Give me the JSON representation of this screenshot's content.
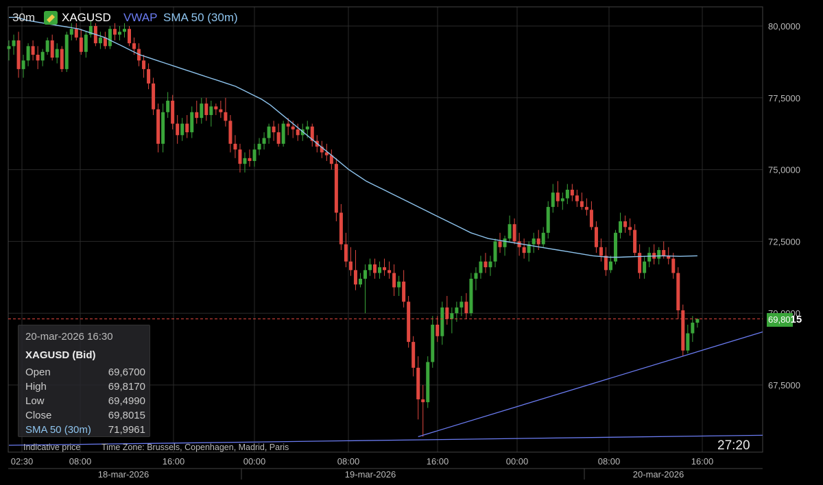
{
  "header": {
    "interval": "30m",
    "symbol": "XAGUSD",
    "indicators": [
      "VWAP",
      "SMA 50 (30m)"
    ]
  },
  "infobox": {
    "datetime": "20-mar-2026 16:30",
    "instrument": "XAGUSD (Bid)",
    "rows": [
      {
        "label": "Open",
        "value": "69,6700"
      },
      {
        "label": "High",
        "value": "69,8170"
      },
      {
        "label": "Low",
        "value": "69,4990"
      },
      {
        "label": "Close",
        "value": "69,8015"
      }
    ],
    "sma": {
      "label": "SMA 50 (30m)",
      "value": "71,9961"
    }
  },
  "footer": {
    "note": "Indicative price",
    "timezone": "Time Zone: Brussels, Copenhagen, Madrid, Paris"
  },
  "countdown": "27:20",
  "price_tag": {
    "main": "69,80",
    "tail": "15"
  },
  "colors": {
    "up": "#3aa53a",
    "down": "#e0473f",
    "sma": "#8ec4ee",
    "vwap": "#6b7cf2",
    "grid": "#2a2a2a",
    "current": "#e0473f"
  },
  "chart_data": {
    "type": "candlestick",
    "y_ticks": [
      "80,0000",
      "77,5000",
      "75,0000",
      "72,5000",
      "70,0000",
      "67,5000"
    ],
    "ylim": [
      65.2,
      80.8
    ],
    "x_ticks": [
      "02:30",
      "08:00",
      "16:00",
      "00:00",
      "08:00",
      "16:00",
      "00:00",
      "08:00",
      "16:00"
    ],
    "date_labels": [
      "18-mar-2026",
      "19-mar-2026",
      "20-mar-2026"
    ],
    "current_price": 69.8015,
    "ohlc": [
      [
        79.2,
        79.5,
        78.8,
        79.3
      ],
      [
        79.3,
        79.7,
        79.0,
        79.5
      ],
      [
        79.5,
        79.8,
        78.2,
        78.5
      ],
      [
        78.5,
        79.0,
        78.2,
        78.8
      ],
      [
        78.8,
        79.4,
        78.6,
        79.3
      ],
      [
        79.3,
        79.5,
        78.8,
        79.0
      ],
      [
        79.0,
        79.3,
        78.5,
        78.8
      ],
      [
        78.8,
        79.2,
        78.6,
        79.1
      ],
      [
        79.1,
        79.6,
        79.0,
        79.5
      ],
      [
        79.5,
        79.7,
        78.8,
        78.9
      ],
      [
        78.9,
        79.4,
        78.7,
        79.2
      ],
      [
        79.2,
        79.3,
        78.4,
        78.5
      ],
      [
        78.5,
        79.8,
        78.4,
        79.7
      ],
      [
        79.7,
        80.1,
        79.5,
        79.9
      ],
      [
        79.9,
        80.1,
        79.5,
        79.6
      ],
      [
        79.6,
        79.9,
        79.0,
        79.1
      ],
      [
        79.1,
        79.8,
        78.9,
        79.7
      ],
      [
        79.7,
        80.2,
        79.6,
        80.0
      ],
      [
        80.0,
        80.1,
        79.3,
        79.4
      ],
      [
        79.4,
        79.8,
        79.2,
        79.6
      ],
      [
        79.6,
        79.8,
        79.2,
        79.3
      ],
      [
        79.3,
        80.0,
        79.2,
        79.9
      ],
      [
        79.9,
        80.1,
        79.5,
        79.7
      ],
      [
        79.7,
        80.0,
        79.5,
        79.8
      ],
      [
        79.8,
        80.1,
        79.6,
        79.9
      ],
      [
        79.9,
        80.0,
        79.3,
        79.4
      ],
      [
        79.4,
        79.6,
        79.0,
        79.2
      ],
      [
        79.2,
        79.4,
        78.6,
        78.8
      ],
      [
        78.8,
        79.0,
        78.2,
        78.5
      ],
      [
        78.5,
        78.7,
        77.8,
        78.0
      ],
      [
        78.0,
        78.2,
        76.9,
        77.1
      ],
      [
        77.1,
        77.3,
        75.6,
        75.9
      ],
      [
        75.9,
        77.3,
        75.6,
        77.0
      ],
      [
        77.0,
        77.7,
        76.8,
        77.4
      ],
      [
        77.4,
        77.6,
        76.4,
        76.6
      ],
      [
        76.6,
        76.9,
        75.9,
        76.2
      ],
      [
        76.2,
        76.8,
        76.0,
        76.6
      ],
      [
        76.6,
        76.9,
        76.1,
        76.3
      ],
      [
        76.3,
        77.2,
        76.1,
        77.0
      ],
      [
        77.0,
        77.4,
        76.6,
        76.8
      ],
      [
        76.8,
        77.5,
        76.6,
        77.3
      ],
      [
        77.3,
        77.5,
        76.7,
        76.9
      ],
      [
        76.9,
        77.4,
        76.5,
        77.2
      ],
      [
        77.2,
        77.3,
        76.9,
        77.1
      ],
      [
        77.1,
        77.4,
        76.8,
        77.0
      ],
      [
        77.0,
        77.5,
        76.5,
        76.7
      ],
      [
        76.7,
        76.9,
        75.6,
        75.9
      ],
      [
        75.9,
        76.2,
        75.4,
        75.7
      ],
      [
        75.7,
        75.9,
        74.9,
        75.2
      ],
      [
        75.2,
        75.6,
        74.9,
        75.4
      ],
      [
        75.4,
        75.7,
        75.1,
        75.3
      ],
      [
        75.3,
        75.9,
        75.1,
        75.7
      ],
      [
        75.7,
        76.1,
        75.5,
        75.9
      ],
      [
        75.9,
        76.3,
        75.7,
        76.1
      ],
      [
        76.1,
        76.6,
        75.9,
        76.5
      ],
      [
        76.5,
        76.7,
        76.0,
        76.3
      ],
      [
        76.3,
        76.6,
        75.8,
        75.9
      ],
      [
        75.9,
        76.7,
        75.8,
        76.6
      ],
      [
        76.6,
        76.8,
        76.2,
        76.5
      ],
      [
        76.5,
        76.7,
        76.1,
        76.4
      ],
      [
        76.4,
        76.6,
        76.0,
        76.2
      ],
      [
        76.2,
        76.6,
        76.0,
        76.4
      ],
      [
        76.4,
        76.7,
        76.1,
        76.5
      ],
      [
        76.5,
        76.6,
        75.8,
        76.0
      ],
      [
        76.0,
        76.2,
        75.6,
        75.8
      ],
      [
        75.8,
        76.0,
        75.4,
        75.6
      ],
      [
        75.6,
        75.9,
        75.3,
        75.5
      ],
      [
        75.5,
        75.7,
        75.0,
        75.2
      ],
      [
        75.2,
        75.4,
        73.2,
        73.5
      ],
      [
        73.5,
        73.8,
        72.2,
        72.4
      ],
      [
        72.4,
        72.8,
        71.6,
        71.8
      ],
      [
        71.8,
        72.3,
        71.3,
        71.5
      ],
      [
        71.5,
        72.2,
        70.8,
        71.0
      ],
      [
        71.0,
        71.4,
        70.9,
        71.2
      ],
      [
        71.2,
        71.7,
        70.0,
        71.5
      ],
      [
        71.5,
        71.9,
        71.3,
        71.7
      ],
      [
        71.7,
        71.9,
        71.2,
        71.4
      ],
      [
        71.4,
        71.8,
        71.2,
        71.6
      ],
      [
        71.6,
        71.9,
        71.3,
        71.5
      ],
      [
        71.5,
        71.8,
        71.2,
        71.4
      ],
      [
        71.4,
        71.7,
        70.6,
        70.9
      ],
      [
        70.9,
        71.3,
        70.6,
        71.1
      ],
      [
        71.1,
        71.5,
        70.2,
        70.4
      ],
      [
        70.4,
        70.6,
        68.8,
        69.0
      ],
      [
        69.0,
        69.2,
        67.8,
        68.1
      ],
      [
        68.1,
        68.5,
        66.3,
        67.0
      ],
      [
        67.0,
        67.5,
        65.7,
        66.9
      ],
      [
        66.9,
        68.5,
        66.7,
        68.3
      ],
      [
        68.3,
        69.9,
        68.1,
        69.6
      ],
      [
        69.6,
        69.9,
        69.0,
        69.2
      ],
      [
        69.2,
        70.4,
        68.9,
        70.2
      ],
      [
        70.2,
        70.6,
        69.6,
        69.8
      ],
      [
        69.8,
        70.2,
        69.3,
        70.0
      ],
      [
        70.0,
        70.4,
        69.7,
        70.2
      ],
      [
        70.2,
        70.6,
        69.9,
        70.4
      ],
      [
        70.4,
        70.7,
        69.8,
        70.0
      ],
      [
        70.0,
        71.4,
        69.9,
        71.2
      ],
      [
        71.2,
        71.6,
        70.8,
        71.4
      ],
      [
        71.4,
        72.0,
        71.2,
        71.8
      ],
      [
        71.8,
        72.1,
        71.4,
        71.6
      ],
      [
        71.6,
        72.0,
        71.3,
        71.8
      ],
      [
        71.8,
        72.6,
        71.6,
        72.5
      ],
      [
        72.5,
        72.8,
        72.1,
        72.3
      ],
      [
        72.3,
        72.7,
        72.0,
        72.6
      ],
      [
        72.6,
        73.4,
        72.5,
        73.1
      ],
      [
        73.1,
        73.3,
        72.4,
        72.5
      ],
      [
        72.5,
        72.8,
        72.0,
        72.3
      ],
      [
        72.3,
        72.6,
        71.9,
        72.1
      ],
      [
        72.1,
        72.5,
        71.8,
        72.4
      ],
      [
        72.4,
        72.8,
        72.1,
        72.6
      ],
      [
        72.6,
        72.9,
        72.2,
        72.4
      ],
      [
        72.4,
        73.0,
        72.3,
        72.8
      ],
      [
        72.8,
        73.9,
        72.6,
        73.7
      ],
      [
        73.7,
        74.5,
        73.5,
        74.2
      ],
      [
        74.2,
        74.6,
        73.7,
        73.9
      ],
      [
        73.9,
        74.2,
        73.6,
        74.0
      ],
      [
        74.0,
        74.5,
        73.8,
        74.3
      ],
      [
        74.3,
        74.5,
        73.9,
        74.1
      ],
      [
        74.1,
        74.3,
        73.7,
        73.9
      ],
      [
        73.9,
        74.2,
        73.6,
        73.7
      ],
      [
        73.7,
        74.0,
        73.4,
        73.6
      ],
      [
        73.6,
        73.9,
        72.9,
        73.0
      ],
      [
        73.0,
        73.2,
        72.1,
        72.3
      ],
      [
        72.3,
        72.6,
        71.8,
        72.0
      ],
      [
        72.0,
        72.3,
        71.3,
        71.5
      ],
      [
        71.5,
        72.0,
        71.4,
        71.8
      ],
      [
        71.8,
        72.9,
        71.7,
        72.8
      ],
      [
        72.8,
        73.5,
        72.6,
        73.2
      ],
      [
        73.2,
        73.4,
        72.8,
        73.0
      ],
      [
        73.0,
        73.3,
        72.7,
        72.9
      ],
      [
        72.9,
        73.1,
        72.0,
        72.1
      ],
      [
        72.1,
        72.4,
        71.2,
        71.4
      ],
      [
        71.4,
        72.0,
        71.2,
        71.8
      ],
      [
        71.8,
        72.3,
        71.6,
        72.1
      ],
      [
        72.1,
        72.4,
        71.7,
        71.9
      ],
      [
        71.9,
        72.3,
        71.7,
        72.2
      ],
      [
        72.2,
        72.5,
        71.9,
        72.0
      ],
      [
        72.0,
        72.3,
        71.7,
        71.9
      ],
      [
        71.9,
        72.1,
        71.2,
        71.4
      ],
      [
        71.4,
        71.6,
        69.8,
        70.1
      ],
      [
        70.1,
        70.3,
        68.5,
        68.7
      ],
      [
        68.7,
        69.6,
        68.6,
        69.3
      ],
      [
        69.3,
        69.9,
        69.0,
        69.67
      ],
      [
        69.67,
        69.817,
        69.499,
        69.8015
      ]
    ],
    "sma50": [
      80.3,
      80.3,
      80.2,
      80.15,
      80.1,
      80.05,
      80.0,
      79.95,
      79.9,
      79.8,
      79.7,
      79.6,
      79.45,
      79.3,
      79.15,
      79.0,
      78.9,
      78.8,
      78.7,
      78.6,
      78.5,
      78.4,
      78.3,
      78.2,
      78.1,
      78.0,
      77.9,
      77.75,
      77.6,
      77.45,
      77.25,
      77.0,
      76.75,
      76.5,
      76.25,
      76.0,
      75.75,
      75.5,
      75.25,
      75.0,
      74.8,
      74.6,
      74.45,
      74.3,
      74.15,
      74.0,
      73.85,
      73.7,
      73.55,
      73.4,
      73.25,
      73.1,
      72.95,
      72.8,
      72.7,
      72.6,
      72.55,
      72.5,
      72.45,
      72.4,
      72.35,
      72.3,
      72.25,
      72.2,
      72.15,
      72.1,
      72.05,
      72.0,
      71.97,
      71.95,
      71.95,
      71.96,
      71.97,
      71.98,
      71.99,
      72.0,
      71.99,
      71.98,
      71.99,
      72.0
    ],
    "vwap_lines": [
      {
        "from": [
          0,
          65.4
        ],
        "to": [
          null,
          65.75
        ],
        "extend": true
      },
      {
        "from": [
          85,
          65.7
        ],
        "to": [
          null,
          69.35
        ],
        "extend": true
      }
    ]
  }
}
